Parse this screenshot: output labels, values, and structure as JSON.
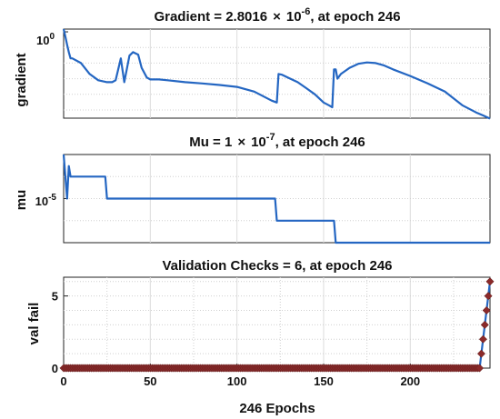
{
  "chart_data": [
    {
      "type": "line",
      "title_prefix": "Gradient = 2.8016",
      "title_times": "×",
      "title_base": "10",
      "title_exp": "-6",
      "title_suffix": ", at epoch 246",
      "ylabel": "gradient",
      "yscale": "log",
      "ylim": [
        3e-06,
        1.5
      ],
      "xlim": [
        0,
        246
      ],
      "grid": true,
      "yticks": [
        {
          "value": 1,
          "label": "10",
          "exp": "0"
        }
      ],
      "color": "#2466c2",
      "series": [
        {
          "x": [
            0,
            1,
            2,
            3,
            4,
            5,
            10,
            15,
            20,
            25,
            28,
            30,
            33,
            35,
            38,
            40,
            43,
            45,
            48,
            50,
            55,
            60,
            70,
            80,
            90,
            100,
            110,
            120,
            123,
            124,
            126,
            130,
            135,
            140,
            145,
            150,
            153,
            155,
            156,
            157,
            158,
            160,
            165,
            170,
            175,
            180,
            185,
            190,
            200,
            210,
            220,
            230,
            238,
            242,
            246
          ],
          "y": [
            1.5,
            0.5,
            0.15,
            0.05,
            0.02,
            0.02,
            0.01,
            0.002,
            0.0008,
            0.0006,
            0.0006,
            0.0008,
            0.02,
            0.0006,
            0.03,
            0.05,
            0.035,
            0.005,
            0.0012,
            0.0009,
            0.0009,
            0.0008,
            0.0006,
            0.0005,
            0.0004,
            0.0003,
            0.00015,
            4e-05,
            3e-05,
            0.002,
            0.0018,
            0.0011,
            0.0006,
            0.00025,
            0.0001,
            3e-05,
            2e-05,
            1.5e-05,
            0.004,
            0.004,
            0.001,
            0.002,
            0.005,
            0.009,
            0.011,
            0.01,
            0.007,
            0.004,
            0.0015,
            0.0005,
            0.00015,
            2e-05,
            7e-06,
            4.5e-06,
            2.8e-06
          ]
        }
      ]
    },
    {
      "type": "line",
      "title_prefix": "Mu = 1",
      "title_times": "×",
      "title_base": "10",
      "title_exp": "-7",
      "title_suffix": ", at epoch 246",
      "ylabel": "mu",
      "yscale": "log",
      "ylim": [
        1e-07,
        0.001
      ],
      "xlim": [
        0,
        246
      ],
      "grid": true,
      "yticks": [
        {
          "value": 1e-05,
          "label": "10",
          "exp": "-5"
        }
      ],
      "color": "#2466c2",
      "series": [
        {
          "x": [
            0,
            1,
            2,
            3,
            4,
            5,
            24,
            25,
            122,
            123,
            156,
            157,
            246
          ],
          "y": [
            0.001,
            0.0001,
            1e-05,
            0.0003,
            0.0001,
            0.0001,
            0.0001,
            1e-05,
            1e-05,
            1e-06,
            1e-06,
            1e-07,
            1e-07
          ]
        }
      ]
    },
    {
      "type": "scatter",
      "title": "Validation Checks = 6, at epoch 246",
      "ylabel": "val fail",
      "xlabel": "246 Epochs",
      "ylim": [
        0,
        6.3
      ],
      "xlim": [
        0,
        246
      ],
      "grid": true,
      "xticks": [
        0,
        50,
        100,
        150,
        200
      ],
      "yticks": [
        0,
        5
      ],
      "line_color": "#2466c2",
      "marker_color": "#8b2a2a",
      "marker_shape": "diamond",
      "series": [
        {
          "x_range": [
            0,
            240
          ],
          "zero_value": 0,
          "tail_x": [
            241,
            242,
            243,
            244,
            245,
            246
          ],
          "tail_y": [
            1,
            2,
            3,
            4,
            5,
            6
          ]
        }
      ]
    }
  ]
}
